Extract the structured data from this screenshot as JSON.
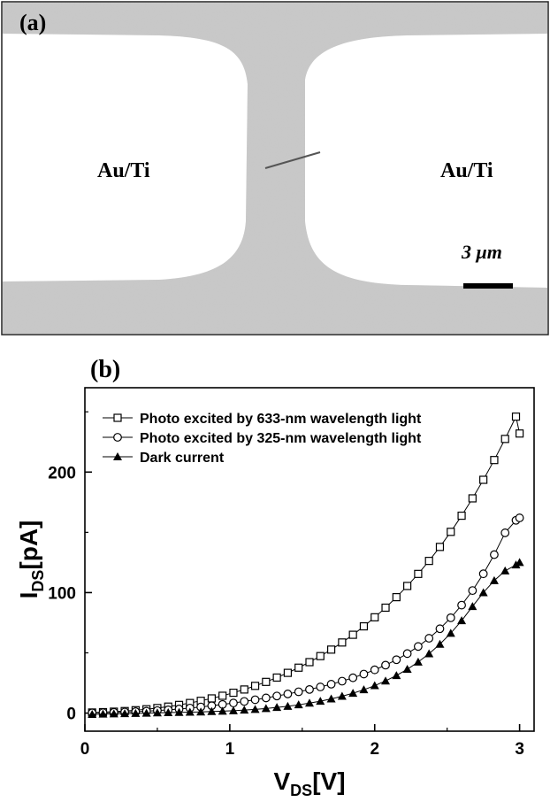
{
  "panel_a": {
    "panel_label": "(a)",
    "left_electrode_label": "Au/Ti",
    "right_electrode_label": "Au/Ti",
    "scale_bar_label": "3 μm"
  },
  "chart_data": {
    "type": "scatter",
    "panel_label": "(b)",
    "xlabel": "V_DS[V]",
    "ylabel": "I_DS[pA]",
    "xlim": [
      0,
      3.1
    ],
    "ylim": [
      -15,
      270
    ],
    "x_ticks": [
      0,
      1,
      2,
      3
    ],
    "y_ticks": [
      0,
      100,
      200
    ],
    "grid": false,
    "legend_position": "top-left",
    "colors": {
      "series": "#000000",
      "background": "#ffffff"
    },
    "x": [
      0.05,
      0.125,
      0.2,
      0.275,
      0.35,
      0.425,
      0.5,
      0.575,
      0.65,
      0.725,
      0.8,
      0.875,
      0.95,
      1.025,
      1.1,
      1.175,
      1.25,
      1.325,
      1.4,
      1.475,
      1.55,
      1.625,
      1.7,
      1.775,
      1.85,
      1.925,
      2.0,
      2.075,
      2.15,
      2.225,
      2.3,
      2.375,
      2.45,
      2.525,
      2.6,
      2.675,
      2.75,
      2.825,
      2.9,
      2.975,
      3.0
    ],
    "series": [
      {
        "name": "Photo excited by 633-nm  wavelength light",
        "marker": "open-square",
        "values": [
          0.5,
          0.8,
          1.2,
          1.7,
          2.4,
          3.2,
          4.2,
          5.4,
          6.8,
          8.4,
          10.2,
          12.2,
          14.4,
          16.9,
          19.6,
          22.6,
          25.9,
          29.5,
          33.4,
          37.7,
          42.3,
          47.3,
          52.7,
          58.6,
          65.0,
          72.0,
          79.5,
          87.5,
          96.2,
          105.5,
          115.5,
          126.3,
          137.9,
          150.4,
          163.8,
          178.2,
          193.6,
          210.0,
          227.5,
          246.0,
          232.0
        ]
      },
      {
        "name": "Photo excited by 325-nm wavelength light",
        "marker": "open-circle",
        "values": [
          0.2,
          0.4,
          0.6,
          0.9,
          1.2,
          1.6,
          2.1,
          2.7,
          3.4,
          4.2,
          5.1,
          6.1,
          7.2,
          8.4,
          9.7,
          11.1,
          12.6,
          14.2,
          15.9,
          17.7,
          19.6,
          21.7,
          24.0,
          26.5,
          29.3,
          32.4,
          35.9,
          39.8,
          44.3,
          49.4,
          55.3,
          62.1,
          70.0,
          79.1,
          89.6,
          101.7,
          115.6,
          131.5,
          149.6,
          160.0,
          162.0
        ]
      },
      {
        "name": "Dark current",
        "marker": "filled-triangle",
        "values": [
          -1.0,
          -0.8,
          -0.6,
          -0.4,
          -0.2,
          0.0,
          0.2,
          0.4,
          0.6,
          0.8,
          1.0,
          1.3,
          1.6,
          2.0,
          2.5,
          3.1,
          3.8,
          4.7,
          5.7,
          6.9,
          8.3,
          9.9,
          11.8,
          14.0,
          16.5,
          19.4,
          22.8,
          26.7,
          31.2,
          36.4,
          42.4,
          49.3,
          57.2,
          66.3,
          76.7,
          88.5,
          100.0,
          110.0,
          118.0,
          123.0,
          125.0
        ]
      }
    ]
  }
}
